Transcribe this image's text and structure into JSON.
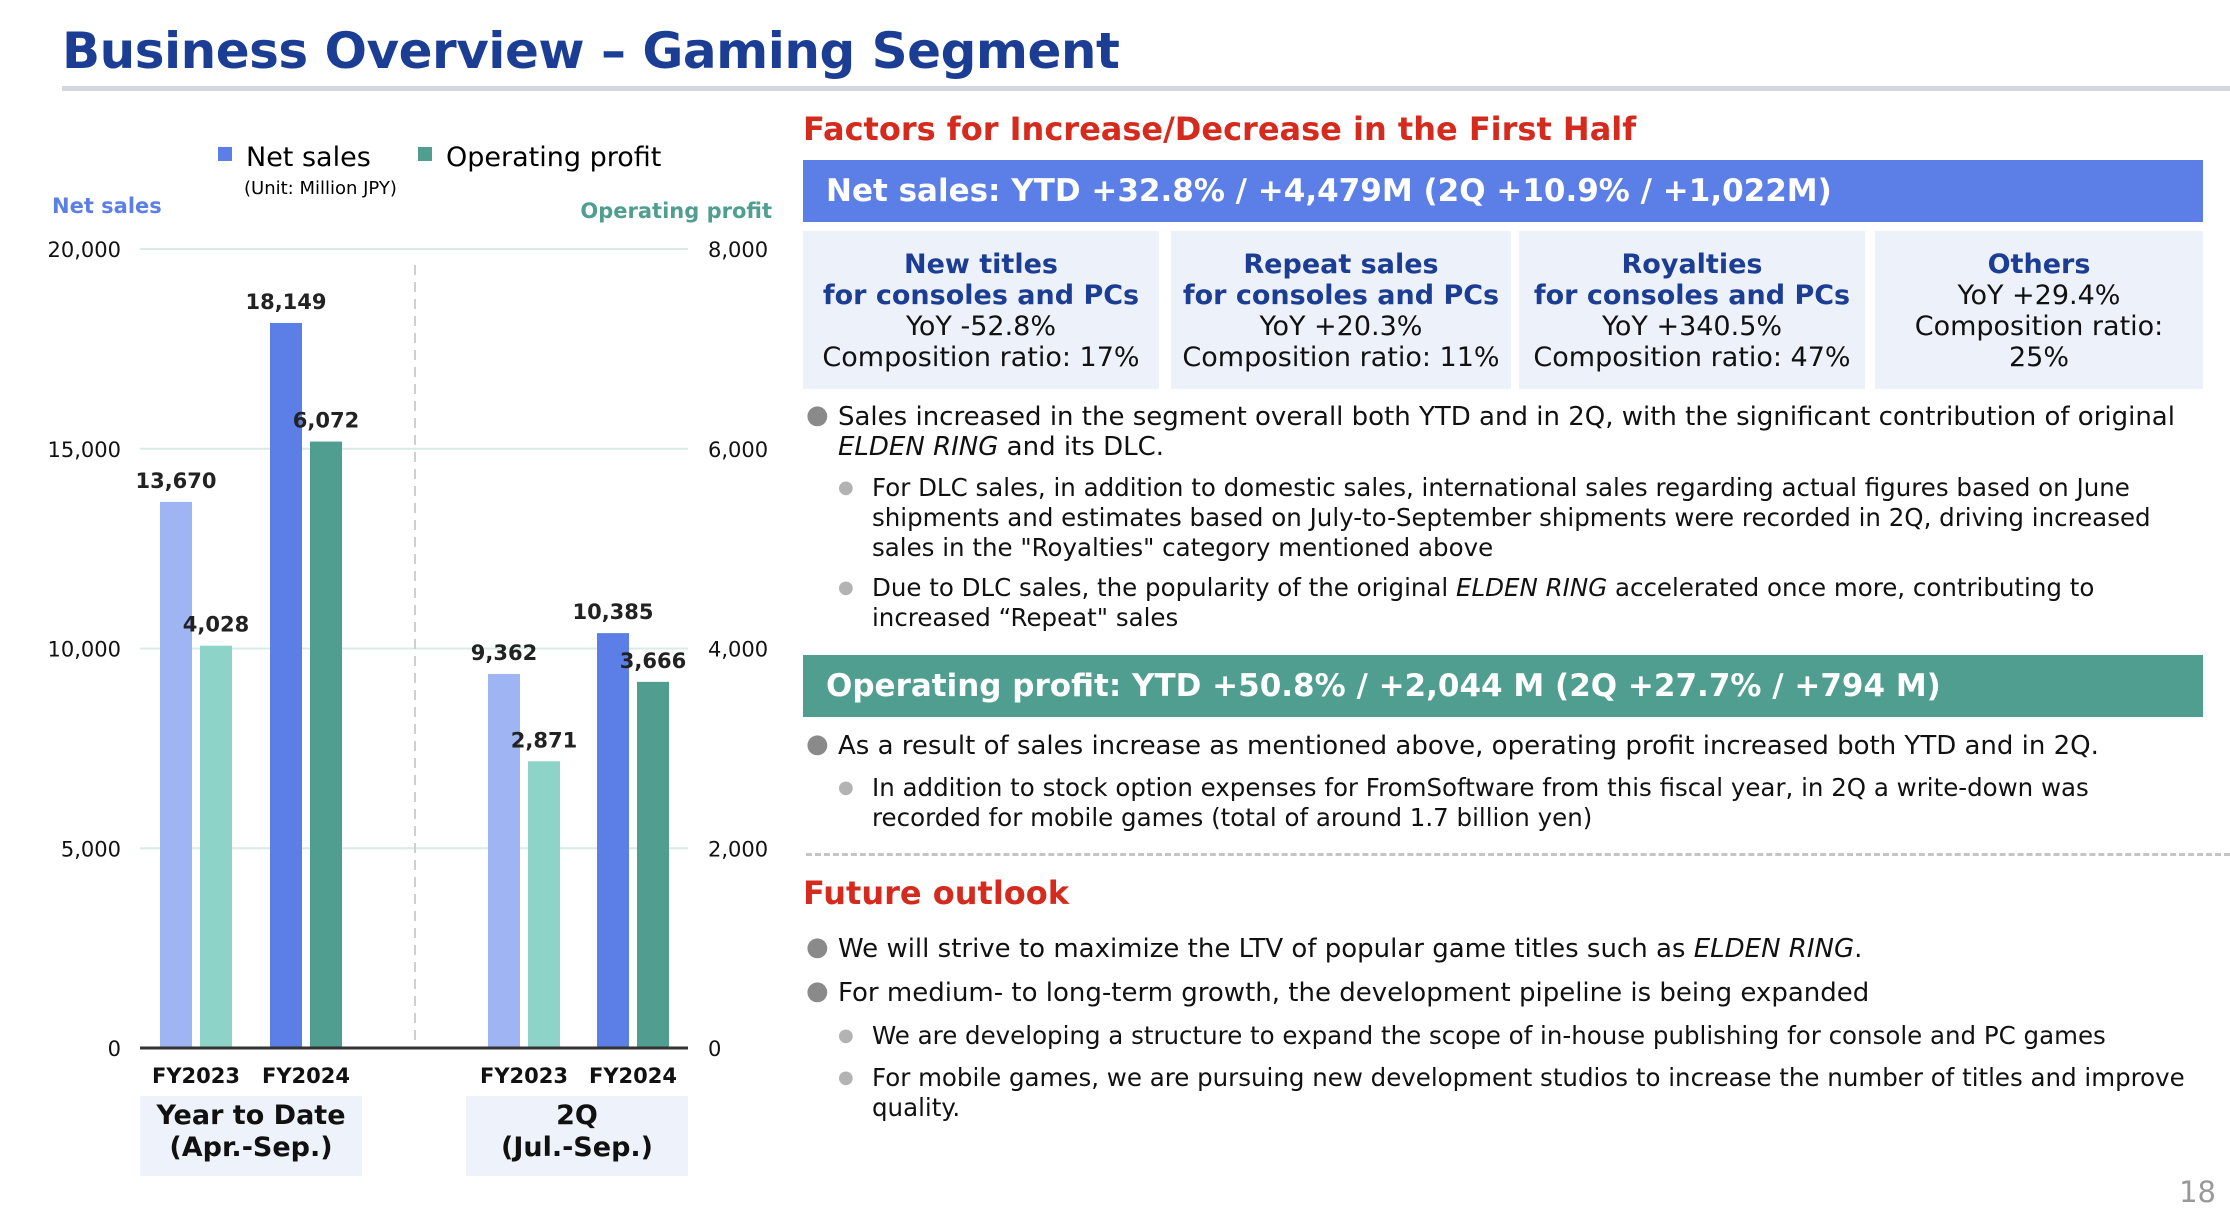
{
  "slide": {
    "title": "Business Overview – Gaming Segment",
    "page_number": "18"
  },
  "chart": {
    "legend": [
      {
        "label": "Net sales",
        "color": "#5b7fe6"
      },
      {
        "label": "Operating profit",
        "color": "#4f9e90"
      }
    ],
    "unit_note": "(Unit: Million JPY)",
    "left_axis_title": "Net sales",
    "right_axis_title": "Operating profit",
    "left_axis_color": "#5b7fe6",
    "right_axis_color": "#4f9e90",
    "period_labels": [
      {
        "line1": "Year to Date",
        "line2": "(Apr.-Sep.)"
      },
      {
        "line1": "2Q",
        "line2": "(Jul.-Sep.)"
      }
    ]
  },
  "chart_data": {
    "type": "bar",
    "groups": [
      "Year to Date (Apr.-Sep.)",
      "2Q (Jul.-Sep.)"
    ],
    "categories": [
      "FY2023",
      "FY2024",
      "FY2023",
      "FY2024"
    ],
    "series": [
      {
        "name": "Net sales",
        "axis": "left",
        "values": [
          13670,
          18149,
          9362,
          10385
        ],
        "labels": [
          "13,670",
          "18,149",
          "9,362",
          "10,385"
        ],
        "colors": [
          "#9fb4f2",
          "#5b7fe6",
          "#9fb4f2",
          "#5b7fe6"
        ]
      },
      {
        "name": "Operating profit",
        "axis": "right",
        "values": [
          4028,
          6072,
          2871,
          3666
        ],
        "labels": [
          "4,028",
          "6,072",
          "2,871",
          "3,666"
        ],
        "colors": [
          "#8dd3c8",
          "#4f9e90",
          "#8dd3c8",
          "#4f9e90"
        ]
      }
    ],
    "y_left": {
      "min": 0,
      "max": 20000,
      "ticks": [
        0,
        5000,
        10000,
        15000,
        20000
      ],
      "tick_labels": [
        "0",
        "5,000",
        "10,000",
        "15,000",
        "20,000"
      ]
    },
    "y_right": {
      "min": 0,
      "max": 8000,
      "ticks": [
        0,
        2000,
        4000,
        6000,
        8000
      ],
      "tick_labels": [
        "0",
        "2,000",
        "4,000",
        "6,000",
        "8,000"
      ]
    },
    "grid": true,
    "legend_position": "top"
  },
  "factors": {
    "heading": "Factors for Increase/Decrease in the First Half",
    "net_sales_bar": "Net sales: YTD +32.8% / +4,479M (2Q +10.9% / +1,022M)",
    "boxes": [
      {
        "title1": "New titles",
        "title2": "for consoles and PCs",
        "line1": "YoY -52.8%",
        "line2": "Composition ratio: 17%"
      },
      {
        "title1": "Repeat sales",
        "title2": "for consoles and PCs",
        "line1": "YoY +20.3%",
        "line2": "Composition ratio: 11%"
      },
      {
        "title1": "Royalties",
        "title2": "for consoles and PCs",
        "line1": "YoY +340.5%",
        "line2": "Composition ratio: 47%"
      },
      {
        "title1": "Others",
        "title2": "",
        "line1": "YoY +29.4%",
        "line2": "Composition ratio: 25%"
      }
    ],
    "sales_bullet": {
      "pre": "Sales increased in the segment overall both YTD and in 2Q, with the significant contribution of original ",
      "italic": "ELDEN RING",
      "post": " and its DLC."
    },
    "sales_sub1": "For DLC sales, in addition to domestic sales, international sales regarding actual figures based on June shipments and estimates based on July-to-September shipments were recorded in 2Q, driving increased sales in the \"Royalties\" category mentioned above",
    "sales_sub2": {
      "pre": "Due to DLC sales, the popularity of the original ",
      "italic": "ELDEN RING",
      "post": " accelerated once more, contributing to increased “Repeat\" sales"
    },
    "op_bar": "Operating profit: YTD +50.8% / +2,044 M (2Q +27.7% / +794 M)",
    "op_bullet": "As a result of sales increase as mentioned above, operating profit increased both YTD and in 2Q.",
    "op_sub1": "In addition to stock option expenses for FromSoftware from this fiscal year, in 2Q a write-down was recorded for mobile games (total of around 1.7 billion yen)"
  },
  "outlook": {
    "heading": "Future outlook",
    "bullet1": {
      "pre": "We will strive to maximize the LTV of popular game titles such as ",
      "italic": "ELDEN RING",
      "post": "."
    },
    "bullet2": "For medium- to long-term growth, the development pipeline is being expanded",
    "sub1": "We are developing a structure to expand the scope of in-house publishing for console and PC games",
    "sub2": "For mobile games, we are pursuing new development studios to increase the number of titles and improve quality."
  },
  "colors": {
    "title_blue": "#1c3d94",
    "accent_red": "#d52b1e",
    "net_sales_bar_bg": "#5b7fe6",
    "op_bar_bg": "#4f9e90"
  }
}
